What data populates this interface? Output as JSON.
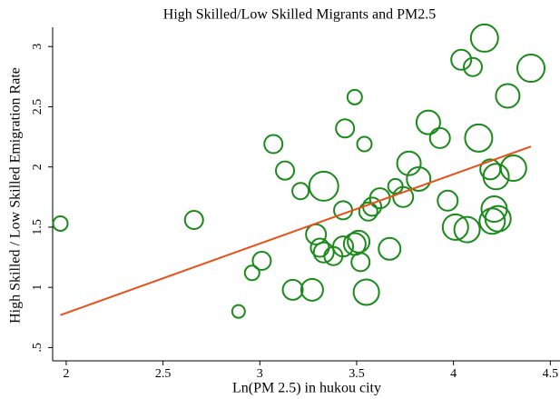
{
  "chart_data": {
    "type": "scatter",
    "title": "High Skilled/Low Skilled Migrants and PM2.5",
    "x_label": "Ln(PM 2.5) in hukou city",
    "y_label": "High Skilled / Low Skilled Emigration Rate",
    "color": "#1a8a1a",
    "x": [
      1.97,
      2.66,
      2.89,
      2.96,
      3.01,
      3.07,
      3.13,
      3.17,
      3.21,
      3.27,
      3.29,
      3.31,
      3.33,
      3.33,
      3.38,
      3.43,
      3.43,
      3.44,
      3.49,
      3.49,
      3.51,
      3.52,
      3.54,
      3.55,
      3.56,
      3.58,
      3.62,
      3.67,
      3.7,
      3.74,
      3.77,
      3.82,
      3.87,
      3.93,
      3.97,
      4.01,
      4.04,
      4.07,
      4.1,
      4.13,
      4.16,
      4.19,
      4.2,
      4.21,
      4.22,
      4.23,
      4.28,
      4.31,
      4.4
    ],
    "values": [
      1.53,
      1.56,
      0.8,
      1.12,
      1.22,
      2.19,
      1.97,
      0.98,
      1.8,
      0.98,
      1.44,
      1.33,
      1.29,
      1.84,
      1.26,
      1.34,
      1.64,
      2.32,
      1.36,
      2.58,
      1.38,
      1.21,
      2.19,
      0.96,
      1.63,
      1.67,
      1.74,
      1.32,
      1.84,
      1.75,
      2.03,
      1.9,
      2.37,
      2.24,
      1.72,
      1.5,
      2.89,
      1.48,
      2.83,
      2.24,
      3.07,
      1.98,
      1.55,
      1.65,
      1.92,
      1.57,
      2.59,
      1.99,
      2.82
    ],
    "sizes": [
      8,
      10,
      7,
      8,
      10,
      10,
      10,
      11,
      9,
      12,
      11,
      10,
      11,
      16,
      10,
      11,
      10,
      10,
      12,
      8,
      12,
      10,
      8,
      14,
      10,
      10,
      11,
      12,
      8,
      11,
      13,
      13,
      13,
      11,
      11,
      14,
      11,
      14,
      10,
      15,
      15,
      11,
      14,
      14,
      14,
      14,
      13,
      14,
      15
    ],
    "fit_line": {
      "x": [
        1.97,
        4.4
      ],
      "y": [
        0.77,
        2.17
      ],
      "color": "#e8501a"
    },
    "xlim": [
      1.93,
      4.55
    ],
    "ylim": [
      0.39,
      3.16
    ],
    "xticks": [
      2,
      2.5,
      3,
      3.5,
      4,
      4.5
    ],
    "yticks": [
      {
        "value": 0.5,
        "label": ".5"
      },
      1,
      1.5,
      2,
      2.5,
      3
    ]
  }
}
